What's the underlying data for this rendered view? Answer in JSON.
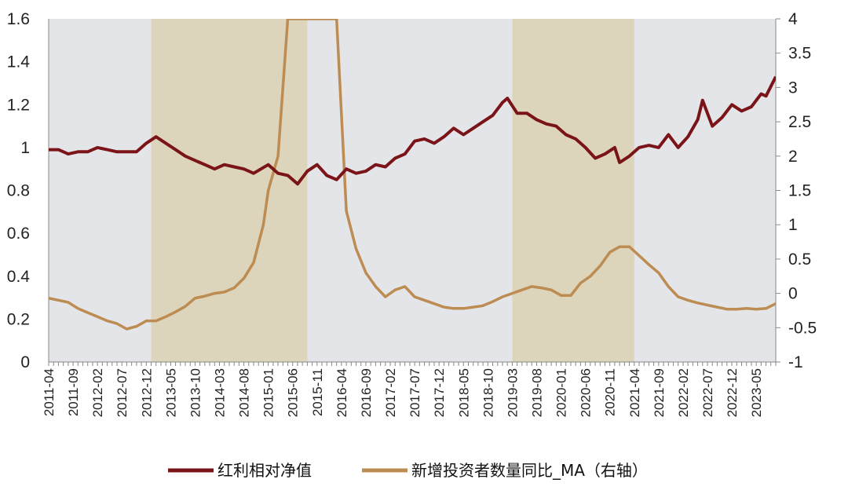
{
  "chart_data": {
    "type": "line",
    "title": "",
    "xlabel": "",
    "ylabel_left": "",
    "ylabel_right": "",
    "ylim_left": [
      0,
      1.6
    ],
    "ylim_right": [
      -1,
      4
    ],
    "yticks_left": [
      "0",
      "0.2",
      "0.4",
      "0.6",
      "0.8",
      "1",
      "1.2",
      "1.4",
      "1.6"
    ],
    "yticks_right": [
      "-1",
      "-0.5",
      "0",
      "0.5",
      "1",
      "1.5",
      "2",
      "2.5",
      "3",
      "3.5",
      "4"
    ],
    "x_start": "2011-04",
    "x_end": "2023-09",
    "x_tick_labels": [
      "2011-04",
      "2011-09",
      "2012-02",
      "2012-07",
      "2012-12",
      "2013-05",
      "2013-10",
      "2014-03",
      "2014-08",
      "2015-01",
      "2015-06",
      "2015-11",
      "2016-04",
      "2016-09",
      "2017-02",
      "2017-07",
      "2017-12",
      "2018-05",
      "2018-10",
      "2019-03",
      "2019-08",
      "2020-01",
      "2020-06",
      "2020-11",
      "2021-04",
      "2021-09",
      "2022-02",
      "2022-07",
      "2022-12",
      "2023-05"
    ],
    "shaded_periods": [
      {
        "start": "2013-01",
        "end": "2015-09"
      },
      {
        "start": "2019-03",
        "end": "2021-04"
      }
    ],
    "colors": {
      "plot_bg": "#e4e5e9",
      "shade": "#ddd5bb",
      "series1": "#7a1418",
      "series2": "#bd8c52"
    },
    "legend_position": "bottom",
    "series": [
      {
        "name": "红利相对净值",
        "axis": "left",
        "color": "#7a1418",
        "points": [
          [
            "2011-04",
            0.99
          ],
          [
            "2011-06",
            0.99
          ],
          [
            "2011-08",
            0.97
          ],
          [
            "2011-10",
            0.98
          ],
          [
            "2011-12",
            0.98
          ],
          [
            "2012-02",
            1.0
          ],
          [
            "2012-04",
            0.99
          ],
          [
            "2012-06",
            0.98
          ],
          [
            "2012-08",
            0.98
          ],
          [
            "2012-10",
            0.98
          ],
          [
            "2012-12",
            1.02
          ],
          [
            "2013-02",
            1.05
          ],
          [
            "2013-04",
            1.02
          ],
          [
            "2013-06",
            0.99
          ],
          [
            "2013-08",
            0.96
          ],
          [
            "2013-10",
            0.94
          ],
          [
            "2013-12",
            0.92
          ],
          [
            "2014-02",
            0.9
          ],
          [
            "2014-04",
            0.92
          ],
          [
            "2014-06",
            0.91
          ],
          [
            "2014-08",
            0.9
          ],
          [
            "2014-10",
            0.88
          ],
          [
            "2015-01",
            0.92
          ],
          [
            "2015-03",
            0.88
          ],
          [
            "2015-05",
            0.87
          ],
          [
            "2015-07",
            0.83
          ],
          [
            "2015-09",
            0.89
          ],
          [
            "2015-11",
            0.92
          ],
          [
            "2016-01",
            0.87
          ],
          [
            "2016-03",
            0.85
          ],
          [
            "2016-05",
            0.9
          ],
          [
            "2016-07",
            0.88
          ],
          [
            "2016-09",
            0.89
          ],
          [
            "2016-11",
            0.92
          ],
          [
            "2017-01",
            0.91
          ],
          [
            "2017-03",
            0.95
          ],
          [
            "2017-05",
            0.97
          ],
          [
            "2017-07",
            1.03
          ],
          [
            "2017-09",
            1.04
          ],
          [
            "2017-11",
            1.02
          ],
          [
            "2018-01",
            1.05
          ],
          [
            "2018-03",
            1.09
          ],
          [
            "2018-05",
            1.06
          ],
          [
            "2018-07",
            1.09
          ],
          [
            "2018-09",
            1.12
          ],
          [
            "2018-11",
            1.15
          ],
          [
            "2019-01",
            1.21
          ],
          [
            "2019-02",
            1.23
          ],
          [
            "2019-04",
            1.16
          ],
          [
            "2019-06",
            1.16
          ],
          [
            "2019-08",
            1.13
          ],
          [
            "2019-10",
            1.11
          ],
          [
            "2019-12",
            1.1
          ],
          [
            "2020-02",
            1.06
          ],
          [
            "2020-04",
            1.04
          ],
          [
            "2020-06",
            1.0
          ],
          [
            "2020-08",
            0.95
          ],
          [
            "2020-10",
            0.97
          ],
          [
            "2020-12",
            1.0
          ],
          [
            "2021-01",
            0.93
          ],
          [
            "2021-03",
            0.96
          ],
          [
            "2021-05",
            1.0
          ],
          [
            "2021-07",
            1.01
          ],
          [
            "2021-09",
            1.0
          ],
          [
            "2021-11",
            1.06
          ],
          [
            "2022-01",
            1.0
          ],
          [
            "2022-03",
            1.05
          ],
          [
            "2022-05",
            1.13
          ],
          [
            "2022-06",
            1.22
          ],
          [
            "2022-08",
            1.1
          ],
          [
            "2022-10",
            1.14
          ],
          [
            "2022-12",
            1.2
          ],
          [
            "2023-02",
            1.17
          ],
          [
            "2023-04",
            1.19
          ],
          [
            "2023-06",
            1.25
          ],
          [
            "2023-07",
            1.24
          ],
          [
            "2023-09",
            1.33
          ]
        ]
      },
      {
        "name": "新增投资者数量同比_MA（右轴）",
        "axis": "right",
        "color": "#bd8c52",
        "points": [
          [
            "2011-04",
            -0.07
          ],
          [
            "2011-06",
            -0.1
          ],
          [
            "2011-08",
            -0.13
          ],
          [
            "2011-10",
            -0.22
          ],
          [
            "2011-12",
            -0.28
          ],
          [
            "2012-02",
            -0.34
          ],
          [
            "2012-04",
            -0.4
          ],
          [
            "2012-06",
            -0.44
          ],
          [
            "2012-08",
            -0.52
          ],
          [
            "2012-10",
            -0.48
          ],
          [
            "2012-12",
            -0.4
          ],
          [
            "2013-02",
            -0.4
          ],
          [
            "2013-04",
            -0.34
          ],
          [
            "2013-06",
            -0.27
          ],
          [
            "2013-08",
            -0.19
          ],
          [
            "2013-10",
            -0.07
          ],
          [
            "2013-12",
            -0.04
          ],
          [
            "2014-02",
            0.0
          ],
          [
            "2014-04",
            0.02
          ],
          [
            "2014-06",
            0.08
          ],
          [
            "2014-08",
            0.22
          ],
          [
            "2014-10",
            0.45
          ],
          [
            "2014-12",
            1.0
          ],
          [
            "2015-01",
            1.5
          ],
          [
            "2015-03",
            2.0
          ],
          [
            "2015-05",
            4.0
          ],
          [
            "2016-03",
            4.0
          ],
          [
            "2016-05",
            1.2
          ],
          [
            "2016-07",
            0.65
          ],
          [
            "2016-09",
            0.3
          ],
          [
            "2016-11",
            0.1
          ],
          [
            "2017-01",
            -0.05
          ],
          [
            "2017-03",
            0.05
          ],
          [
            "2017-05",
            0.1
          ],
          [
            "2017-07",
            -0.05
          ],
          [
            "2017-09",
            -0.1
          ],
          [
            "2017-11",
            -0.15
          ],
          [
            "2018-01",
            -0.2
          ],
          [
            "2018-03",
            -0.22
          ],
          [
            "2018-05",
            -0.22
          ],
          [
            "2018-07",
            -0.2
          ],
          [
            "2018-09",
            -0.18
          ],
          [
            "2018-11",
            -0.12
          ],
          [
            "2019-01",
            -0.05
          ],
          [
            "2019-03",
            0.0
          ],
          [
            "2019-05",
            0.05
          ],
          [
            "2019-07",
            0.1
          ],
          [
            "2019-09",
            0.08
          ],
          [
            "2019-11",
            0.05
          ],
          [
            "2020-01",
            -0.03
          ],
          [
            "2020-03",
            -0.03
          ],
          [
            "2020-05",
            0.15
          ],
          [
            "2020-07",
            0.25
          ],
          [
            "2020-09",
            0.4
          ],
          [
            "2020-11",
            0.6
          ],
          [
            "2021-01",
            0.68
          ],
          [
            "2021-03",
            0.68
          ],
          [
            "2021-05",
            0.55
          ],
          [
            "2021-07",
            0.42
          ],
          [
            "2021-09",
            0.3
          ],
          [
            "2021-11",
            0.1
          ],
          [
            "2022-01",
            -0.05
          ],
          [
            "2022-03",
            -0.1
          ],
          [
            "2022-05",
            -0.14
          ],
          [
            "2022-07",
            -0.17
          ],
          [
            "2022-09",
            -0.2
          ],
          [
            "2022-11",
            -0.23
          ],
          [
            "2023-01",
            -0.23
          ],
          [
            "2023-03",
            -0.22
          ],
          [
            "2023-05",
            -0.23
          ],
          [
            "2023-07",
            -0.22
          ],
          [
            "2023-09",
            -0.15
          ]
        ]
      }
    ]
  }
}
